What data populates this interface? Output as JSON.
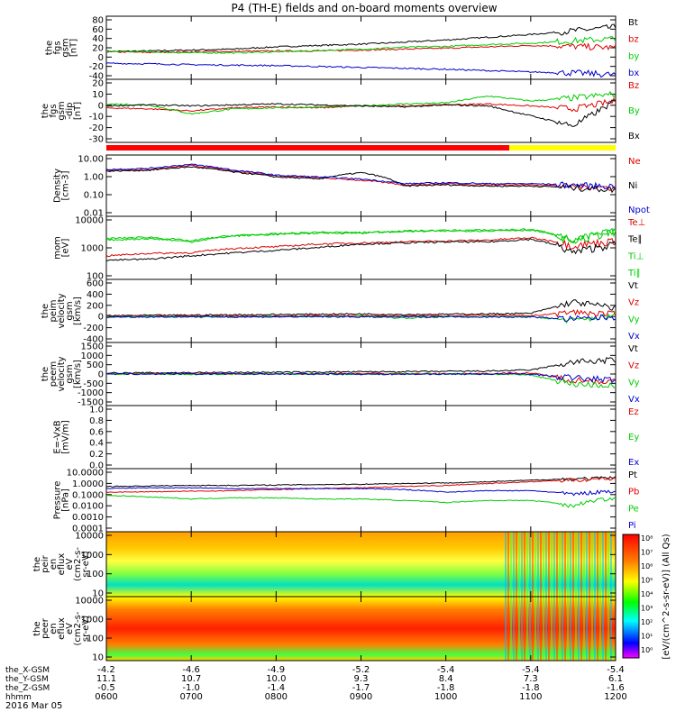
{
  "title": "P4 (TH-E) fields and on-board moments overview",
  "colors": {
    "black": "#000000",
    "red": "#dd0000",
    "green": "#00cc00",
    "blue": "#0000cc",
    "yellow": "#ffff00",
    "mode_red": "#ff0000"
  },
  "x_axis": {
    "ticks": [
      "0600",
      "0700",
      "0800",
      "0900",
      "1000",
      "1100",
      "1200"
    ],
    "rows": [
      {
        "label": "the_X-GSM",
        "values": [
          "-4.2",
          "-4.6",
          "-4.9",
          "-5.2",
          "-5.4",
          "-5.4",
          "-5.4"
        ]
      },
      {
        "label": "the_Y-GSM",
        "values": [
          "11.1",
          "10.7",
          "10.0",
          "9.3",
          "8.4",
          "7.3",
          "6.1"
        ]
      },
      {
        "label": "the_Z-GSM",
        "values": [
          "-0.5",
          "-1.0",
          "-1.4",
          "-1.7",
          "-1.8",
          "-1.8",
          "-1.6"
        ]
      },
      {
        "label": "hhmm",
        "values": [
          "0600",
          "0700",
          "0800",
          "0900",
          "1000",
          "1100",
          "1200"
        ]
      }
    ],
    "date": "2016 Mar 05"
  },
  "colorbar": {
    "ticks": [
      "10⁸",
      "10⁷",
      "10⁶",
      "10⁵",
      "10⁴",
      "10³",
      "10²",
      "10¹",
      "10⁰"
    ],
    "label": "[eV/(cm^2-s-sr-eV)] (All Qs)"
  },
  "panels": [
    {
      "ylabel": [
        "the",
        "fgs",
        "gsm",
        "[nT]"
      ],
      "yticks": [
        "80",
        "60",
        "40",
        "20",
        "0",
        "-20",
        "-40"
      ],
      "legend": [
        "Bt",
        "bz",
        "by",
        "bx"
      ],
      "legend_colors": [
        "black",
        "red",
        "green",
        "blue"
      ]
    },
    {
      "ylabel": [
        "the",
        "fgs",
        "gsm",
        "-dip",
        "[nT]"
      ],
      "yticks": [
        "20",
        "10",
        "0",
        "-10",
        "-20",
        "-30"
      ],
      "legend": [
        "Bz",
        "By",
        "Bx"
      ],
      "legend_colors": [
        "red",
        "green",
        "black"
      ]
    },
    {
      "ylabel": [
        "Density",
        "[cm-3]"
      ],
      "yticks": [
        "10.00",
        "1.00",
        "0.10",
        "0.01"
      ],
      "legend": [
        "Ne",
        "Ni",
        "Npot"
      ],
      "legend_colors": [
        "red",
        "black",
        "blue"
      ]
    },
    {
      "ylabel": [
        "mom",
        "[eV]"
      ],
      "yticks": [
        "10000",
        "1000",
        "100"
      ],
      "legend": [
        "Te⊥",
        "Te∥",
        "Ti⊥",
        "Ti∥"
      ],
      "legend_colors": [
        "red",
        "black",
        "green",
        "green"
      ]
    },
    {
      "ylabel": [
        "the",
        "peim",
        "velocity",
        "gsm",
        "[km/s]"
      ],
      "yticks": [
        "600",
        "400",
        "200",
        "0",
        "-200",
        "-400"
      ],
      "legend": [
        "Vt",
        "Vz",
        "Vy",
        "Vx"
      ],
      "legend_colors": [
        "black",
        "red",
        "green",
        "blue"
      ]
    },
    {
      "ylabel": [
        "the",
        "peem",
        "velocity",
        "gsm",
        "[km/s]"
      ],
      "yticks": [
        "1500",
        "1000",
        "500",
        "0",
        "-500",
        "-1000",
        "-1500"
      ],
      "legend": [
        "Vt",
        "Vz",
        "Vy",
        "Vx"
      ],
      "legend_colors": [
        "black",
        "red",
        "green",
        "blue"
      ]
    },
    {
      "ylabel": [
        "E=-VxB",
        "[mV/m]"
      ],
      "yticks": [
        "1.0",
        "0.8",
        "0.6",
        "0.4",
        "0.2",
        "0.0"
      ],
      "legend": [
        "Ez",
        "Ey",
        "Ex"
      ],
      "legend_colors": [
        "red",
        "green",
        "blue"
      ]
    },
    {
      "ylabel": [
        "Pressure",
        "[nPa]"
      ],
      "yticks": [
        "10.0000",
        "1.0000",
        "0.1000",
        "0.0100",
        "0.0010",
        "0.0001"
      ],
      "legend": [
        "Pt",
        "Pb",
        "Pe",
        "Pi"
      ],
      "legend_colors": [
        "black",
        "red",
        "green",
        "blue"
      ]
    },
    {
      "ylabel": [
        "the",
        "peir",
        "en",
        "eflux",
        "eV",
        "(cm2-s-",
        "sr-eV)"
      ],
      "yticks": [
        "10000",
        "1000",
        "100",
        "10"
      ],
      "legend": [],
      "legend_colors": []
    },
    {
      "ylabel": [
        "the",
        "peer",
        "en",
        "eflux",
        "eV",
        "(cm2-s-",
        "sr-eV)"
      ],
      "yticks": [
        "10000",
        "1000",
        "100",
        "10"
      ],
      "legend": [],
      "legend_colors": []
    }
  ],
  "chart_data": {
    "type": "line",
    "title": "P4 (TH-E) fields and on-board moments overview",
    "x_range": [
      "06:00",
      "12:00"
    ],
    "x_unit": "UT hhmm, 2016 Mar 05",
    "time_hours": [
      6.0,
      6.5,
      7.0,
      7.5,
      8.0,
      8.5,
      9.0,
      9.5,
      10.0,
      10.5,
      11.0,
      11.5,
      12.0
    ],
    "panels": [
      {
        "name": "the fgs gsm",
        "scale": "linear",
        "ylim": [
          -40,
          90
        ],
        "series": [
          {
            "name": "Bt",
            "color": "black",
            "values": [
              17,
              18,
              20,
              22,
              27,
              30,
              33,
              37,
              42,
              48,
              54,
              62,
              70
            ]
          },
          {
            "name": "bz",
            "color": "red",
            "values": [
              16,
              15,
              16,
              17,
              18,
              18,
              20,
              22,
              24,
              27,
              30,
              28,
              25
            ]
          },
          {
            "name": "by",
            "color": "green",
            "values": [
              17,
              16,
              14,
              14,
              16,
              19,
              22,
              26,
              28,
              32,
              35,
              40,
              45
            ]
          },
          {
            "name": "bx",
            "color": "blue",
            "values": [
              -9,
              -10,
              -12,
              -13,
              -14,
              -16,
              -18,
              -20,
              -22,
              -25,
              -28,
              -30,
              -34
            ]
          }
        ]
      },
      {
        "name": "the fgs gsm -dip",
        "scale": "linear",
        "ylim": [
          -35,
          25
        ],
        "series": [
          {
            "name": "Bz",
            "color": "red",
            "values": [
              -2,
              -3,
              -5,
              -2,
              -1,
              -2,
              0,
              0,
              1,
              2,
              0,
              -3,
              5
            ]
          },
          {
            "name": "By",
            "color": "green",
            "values": [
              2,
              1,
              -8,
              -3,
              -2,
              -1,
              0,
              2,
              3,
              10,
              5,
              8,
              12
            ]
          },
          {
            "name": "Bx",
            "color": "black",
            "values": [
              0,
              1,
              0,
              1,
              2,
              1,
              0,
              -1,
              1,
              0,
              -10,
              -20,
              5
            ]
          }
        ]
      },
      {
        "name": "Density",
        "scale": "log",
        "ylim": [
          0.01,
          10
        ],
        "series": [
          {
            "name": "Ne",
            "color": "red",
            "values": [
              2.0,
              2.2,
              3.5,
              1.8,
              1.0,
              0.8,
              0.6,
              0.35,
              0.4,
              0.35,
              0.35,
              0.3,
              0.25
            ]
          },
          {
            "name": "Ni",
            "color": "black",
            "values": [
              1.8,
              2.0,
              3.0,
              1.6,
              0.9,
              0.7,
              1.5,
              0.3,
              0.35,
              0.3,
              0.3,
              0.25,
              0.2
            ]
          },
          {
            "name": "Npot",
            "color": "blue",
            "values": [
              2.2,
              2.5,
              4.0,
              2.0,
              1.1,
              0.9,
              0.7,
              0.4,
              0.45,
              0.4,
              0.4,
              0.35,
              0.3
            ]
          }
        ]
      },
      {
        "name": "mom",
        "scale": "log",
        "ylim": [
          40,
          10000
        ],
        "series": [
          {
            "name": "Te⊥",
            "color": "red",
            "values": [
              300,
              380,
              400,
              600,
              700,
              900,
              1000,
              1100,
              1200,
              1300,
              1600,
              800,
              1200
            ]
          },
          {
            "name": "Te∥",
            "color": "black",
            "values": [
              200,
              220,
              300,
              400,
              500,
              650,
              900,
              1000,
              1100,
              1100,
              1400,
              400,
              900
            ]
          },
          {
            "name": "Ti⊥",
            "color": "green",
            "values": [
              1500,
              1700,
              1200,
              2000,
              2300,
              2700,
              2600,
              3000,
              3200,
              3300,
              3500,
              1200,
              3000
            ]
          },
          {
            "name": "Ti∥",
            "color": "green",
            "values": [
              1300,
              1500,
              1100,
              1900,
              2200,
              2500,
              2500,
              2900,
              3000,
              3100,
              3300,
              1100,
              2800
            ]
          }
        ]
      },
      {
        "name": "the peim velocity gsm",
        "scale": "linear",
        "ylim": [
          -400,
          600
        ],
        "series": [
          {
            "name": "Vt",
            "color": "black",
            "values": [
              20,
              25,
              30,
              35,
              40,
              45,
              50,
              40,
              45,
              50,
              60,
              250,
              150
            ]
          },
          {
            "name": "Vz",
            "color": "red",
            "values": [
              10,
              10,
              15,
              10,
              15,
              20,
              20,
              15,
              20,
              25,
              20,
              80,
              40
            ]
          },
          {
            "name": "Vy",
            "color": "green",
            "values": [
              0,
              5,
              -5,
              0,
              5,
              0,
              10,
              -20,
              0,
              5,
              0,
              -60,
              20
            ]
          },
          {
            "name": "Vx",
            "color": "blue",
            "values": [
              0,
              0,
              5,
              0,
              0,
              5,
              0,
              0,
              5,
              0,
              0,
              -40,
              0
            ]
          }
        ]
      },
      {
        "name": "the peem velocity gsm",
        "scale": "linear",
        "ylim": [
          -1500,
          1500
        ],
        "series": [
          {
            "name": "Vt",
            "color": "black",
            "values": [
              50,
              60,
              70,
              80,
              90,
              100,
              110,
              120,
              130,
              150,
              200,
              600,
              700
            ]
          },
          {
            "name": "Vz",
            "color": "red",
            "values": [
              0,
              10,
              20,
              10,
              0,
              20,
              30,
              20,
              10,
              30,
              50,
              -300,
              -400
            ]
          },
          {
            "name": "Vy",
            "color": "green",
            "values": [
              0,
              0,
              -10,
              0,
              10,
              0,
              -20,
              0,
              10,
              0,
              -50,
              -500,
              -600
            ]
          },
          {
            "name": "Vx",
            "color": "blue",
            "values": [
              0,
              0,
              0,
              10,
              0,
              0,
              0,
              -10,
              0,
              0,
              0,
              -200,
              -300
            ]
          }
        ]
      },
      {
        "name": "E=-VxB",
        "scale": "linear",
        "ylim": [
          0,
          1
        ],
        "series": []
      },
      {
        "name": "Pressure",
        "scale": "log",
        "ylim": [
          0.0001,
          10
        ],
        "series": [
          {
            "name": "Pt",
            "color": "black",
            "values": [
              0.45,
              0.5,
              0.55,
              0.55,
              0.6,
              0.65,
              0.7,
              0.8,
              0.9,
              1.1,
              1.5,
              2.0,
              2.4
            ]
          },
          {
            "name": "Pb",
            "color": "red",
            "values": [
              0.15,
              0.16,
              0.18,
              0.2,
              0.25,
              0.3,
              0.35,
              0.45,
              0.55,
              0.8,
              1.1,
              1.6,
              2.2
            ]
          },
          {
            "name": "Pe",
            "color": "green",
            "values": [
              0.08,
              0.06,
              0.04,
              0.05,
              0.05,
              0.04,
              0.04,
              0.03,
              0.02,
              0.03,
              0.03,
              0.01,
              0.05
            ]
          },
          {
            "name": "Pi",
            "color": "blue",
            "values": [
              0.3,
              0.35,
              0.35,
              0.3,
              0.3,
              0.3,
              0.3,
              0.25,
              0.15,
              0.2,
              0.2,
              0.1,
              0.2
            ]
          }
        ]
      },
      {
        "name": "the peir en eflux",
        "type": "heatmap",
        "scale": "log",
        "ylim": [
          5,
          30000
        ],
        "colorbar_range": [
          1,
          100000000
        ]
      },
      {
        "name": "the peer en eflux",
        "type": "heatmap",
        "scale": "log",
        "ylim": [
          5,
          30000
        ],
        "colorbar_range": [
          1,
          100000000
        ]
      }
    ]
  }
}
